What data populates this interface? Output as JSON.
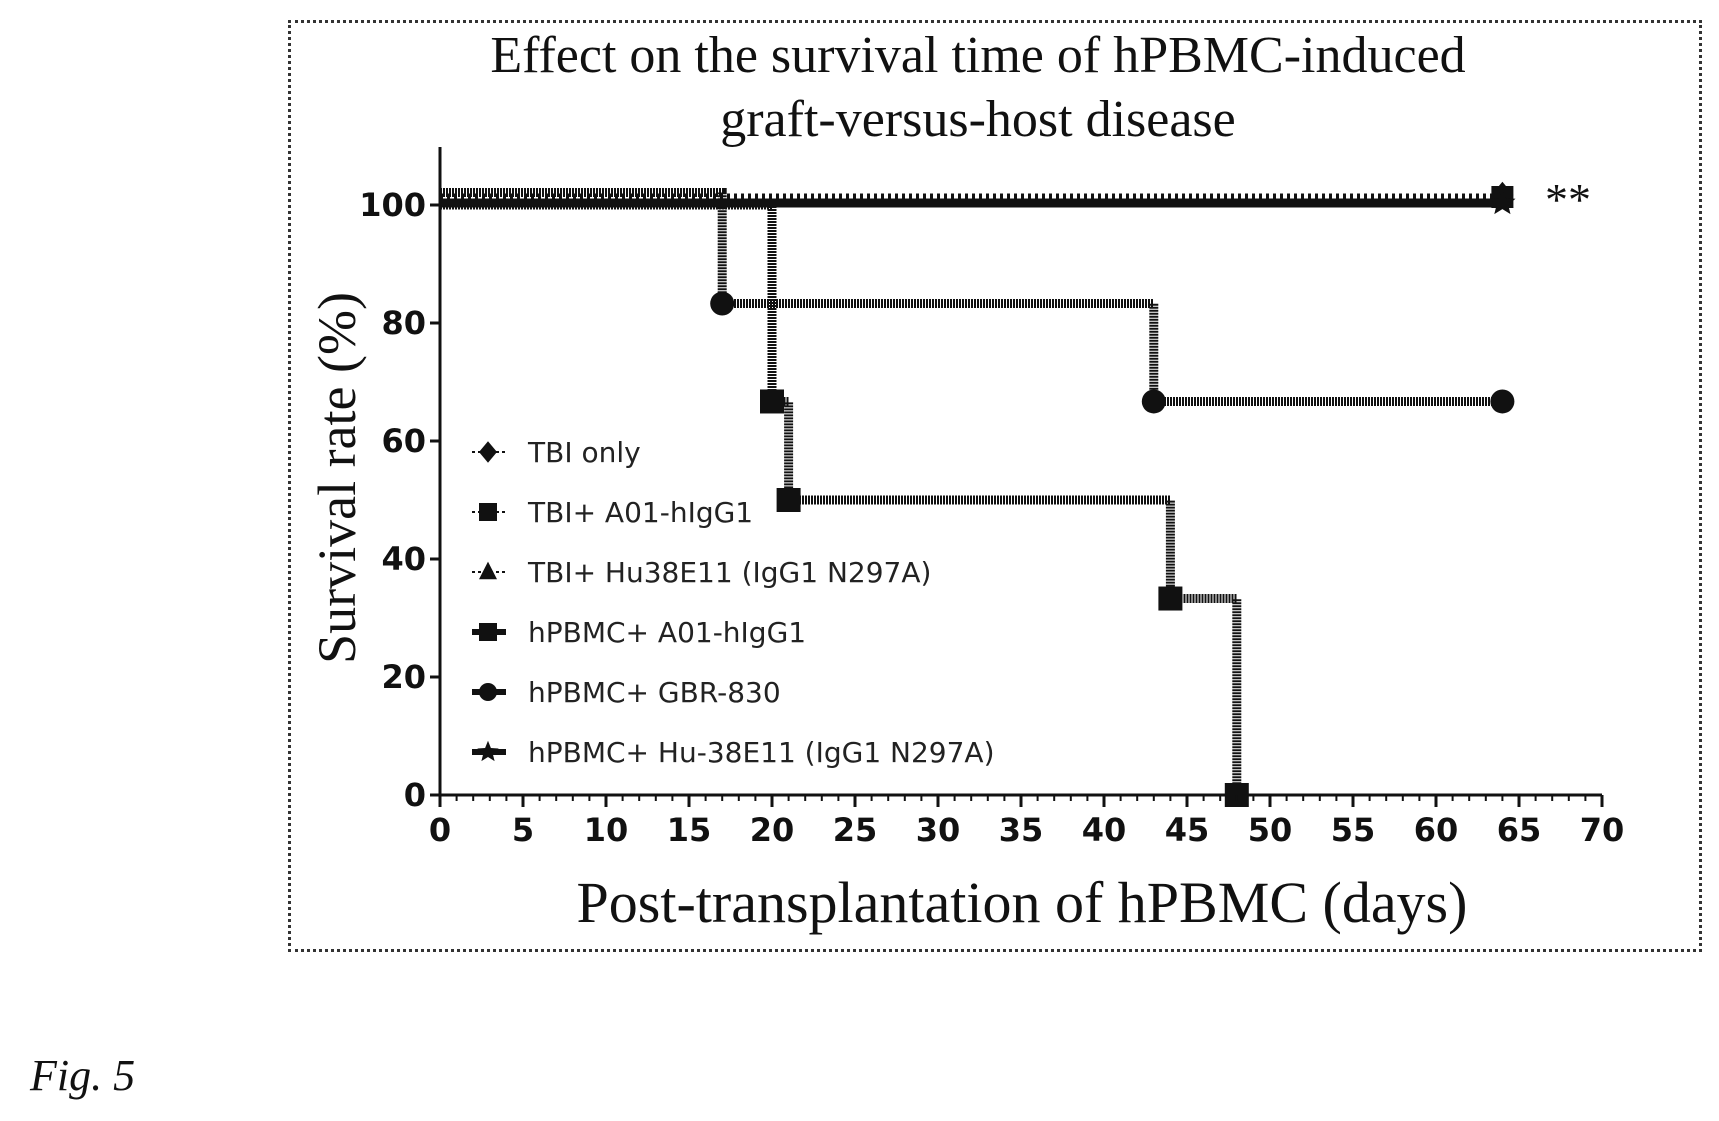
{
  "figure_label": "Fig. 5",
  "chart_data": {
    "type": "line",
    "subtype": "kaplan-meier step survival curve",
    "title_line1": "Effect on the survival time of hPBMC-induced",
    "title_line2": "graft-versus-host disease",
    "xlabel": "Post-transplantation of hPBMC (days)",
    "ylabel": "Survival rate (%)",
    "xlim": [
      0,
      70
    ],
    "ylim": [
      0,
      100
    ],
    "xticks": [
      0,
      5,
      10,
      15,
      20,
      25,
      30,
      35,
      40,
      45,
      50,
      55,
      60,
      65,
      70
    ],
    "yticks": [
      0,
      20,
      40,
      60,
      80,
      100
    ],
    "grid": false,
    "legend_position": "lower-left inside",
    "significance_annotation": "**",
    "series": [
      {
        "name": "TBI only",
        "marker": "diamond",
        "line": "dotted",
        "points": [
          [
            0,
            100
          ],
          [
            64,
            100
          ]
        ]
      },
      {
        "name": "TBI+ A01-hIgG1",
        "marker": "square",
        "line": "dotted",
        "points": [
          [
            0,
            100
          ],
          [
            64,
            100
          ]
        ]
      },
      {
        "name": "TBI+ Hu38E11 (IgG1 N297A)",
        "marker": "triangle",
        "line": "dotted",
        "points": [
          [
            0,
            100
          ],
          [
            64,
            100
          ]
        ]
      },
      {
        "name": "hPBMC+ A01-hIgG1",
        "marker": "square",
        "line": "solid",
        "points": [
          [
            0,
            100
          ],
          [
            20,
            100
          ],
          [
            20,
            66.7
          ],
          [
            21,
            66.7
          ],
          [
            21,
            50
          ],
          [
            44,
            50
          ],
          [
            44,
            33.3
          ],
          [
            48,
            33.3
          ],
          [
            48,
            0
          ]
        ],
        "events": [
          [
            20,
            66.7
          ],
          [
            21,
            50
          ],
          [
            44,
            33.3
          ],
          [
            48,
            0
          ]
        ]
      },
      {
        "name": "hPBMC+ GBR-830",
        "marker": "circle",
        "line": "solid",
        "points": [
          [
            0,
            100
          ],
          [
            17,
            100
          ],
          [
            17,
            83.3
          ],
          [
            43,
            83.3
          ],
          [
            43,
            66.7
          ],
          [
            64,
            66.7
          ]
        ],
        "events": [
          [
            17,
            83.3
          ],
          [
            43,
            66.7
          ],
          [
            64,
            66.7
          ]
        ]
      },
      {
        "name": "hPBMC+ Hu-38E11 (IgG1 N297A)",
        "marker": "star",
        "line": "solid",
        "points": [
          [
            0,
            100
          ],
          [
            64,
            100
          ]
        ]
      }
    ]
  }
}
